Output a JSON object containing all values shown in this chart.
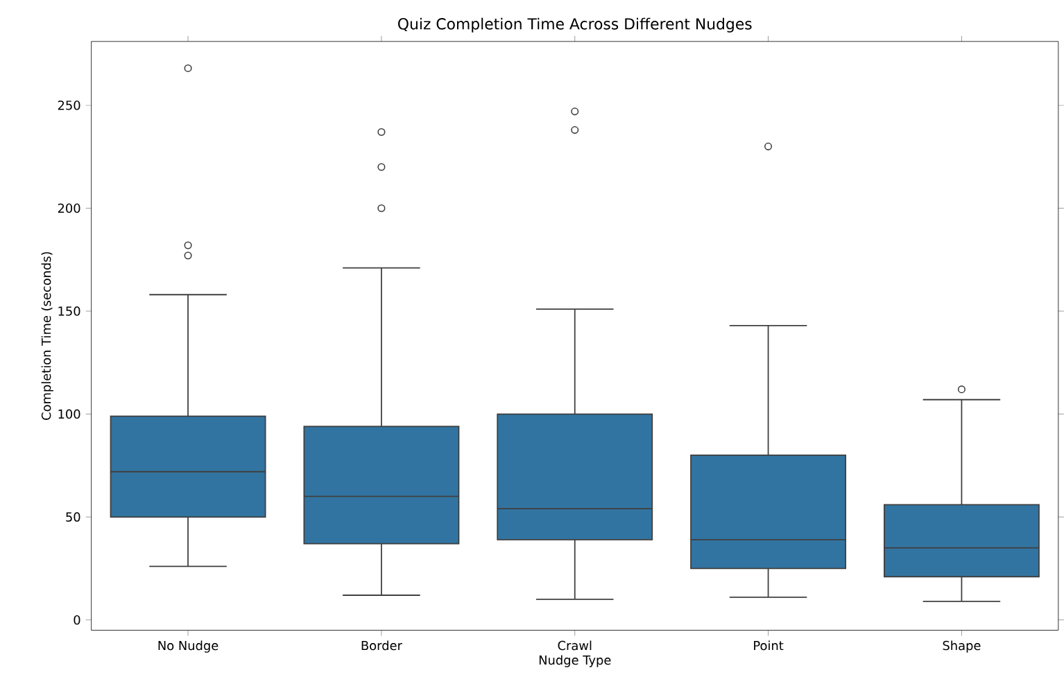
{
  "chart_data": {
    "type": "box",
    "title": "Quiz Completion Time Across Different Nudges",
    "xlabel": "Nudge Type",
    "ylabel": "Completion Time (seconds)",
    "categories": [
      "No Nudge",
      "Border",
      "Crawl",
      "Point",
      "Shape"
    ],
    "color": "#3274a1",
    "boxes": [
      {
        "low": 26,
        "q1": 50,
        "median": 72,
        "q3": 99,
        "high": 158,
        "outliers": [
          177,
          182,
          268
        ]
      },
      {
        "low": 12,
        "q1": 37,
        "median": 60,
        "q3": 94,
        "high": 171,
        "outliers": [
          200,
          220,
          237
        ]
      },
      {
        "low": 10,
        "q1": 39,
        "median": 54,
        "q3": 100,
        "high": 151,
        "outliers": [
          238,
          247
        ]
      },
      {
        "low": 11,
        "q1": 25,
        "median": 39,
        "q3": 80,
        "high": 143,
        "outliers": [
          230
        ]
      },
      {
        "low": 9,
        "q1": 21,
        "median": 35,
        "q3": 56,
        "high": 107,
        "outliers": [
          112
        ]
      }
    ],
    "ylim": [
      -5,
      281
    ],
    "yticks": [
      0,
      50,
      100,
      150,
      200,
      250
    ]
  }
}
